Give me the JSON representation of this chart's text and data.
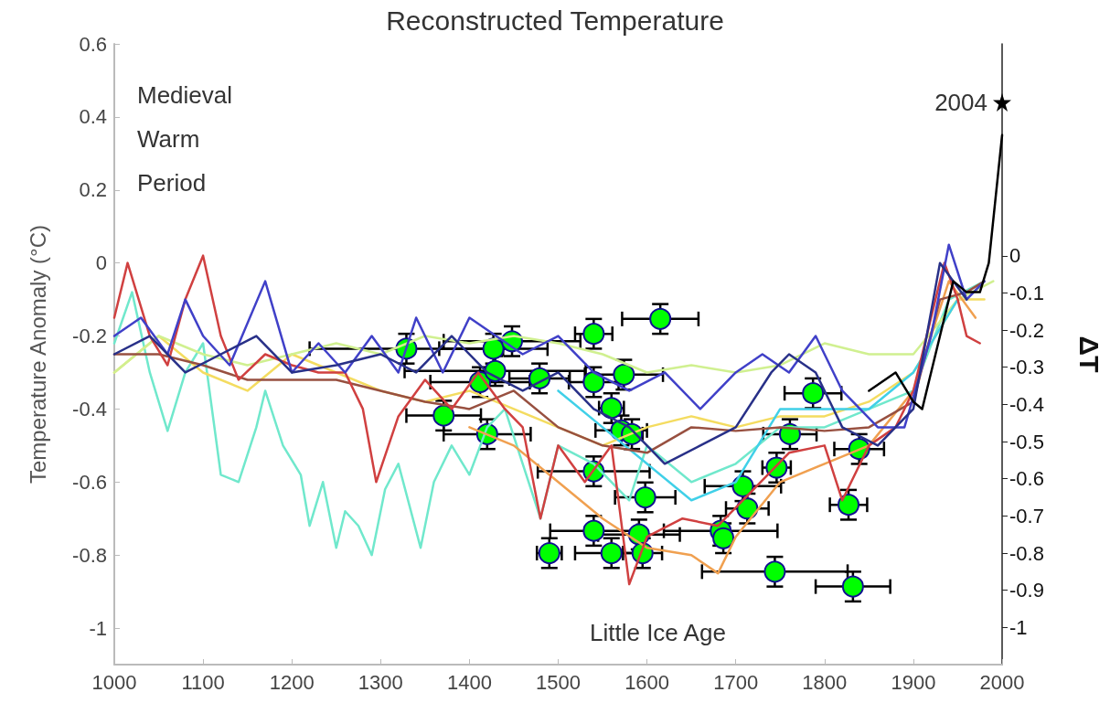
{
  "chart_data": {
    "type": "line",
    "title": "Reconstructed Temperature",
    "ylabel": "Temperature Anomaly (°C)",
    "y2label": "ΔT",
    "annotations": [
      "Medieval\nWarm\nPeriod",
      "Little Ice Age",
      {
        "text": "2004",
        "x": 2000,
        "y": 0.44
      }
    ],
    "xlim": [
      1000,
      2000
    ],
    "xticks": [
      1000,
      1100,
      1200,
      1300,
      1400,
      1500,
      1600,
      1700,
      1800,
      1900,
      2000
    ],
    "ylim": [
      -1.1,
      0.6
    ],
    "yticks": [
      -1,
      -0.8,
      -0.6,
      -0.4,
      -0.2,
      0,
      0.2,
      0.4,
      0.6
    ],
    "y2lim": [
      -1.1,
      0.57
    ],
    "y2ticks": [
      -1,
      -0.9,
      -0.8,
      -0.7,
      -0.6,
      -0.5,
      -0.4,
      -0.3,
      -0.2,
      -0.1,
      0
    ],
    "grid": false,
    "marker": "none",
    "line_style": "solid",
    "series": [
      {
        "color": "#70e8cc",
        "x": [
          1000,
          1020,
          1040,
          1060,
          1080,
          1100,
          1120,
          1140,
          1160,
          1170,
          1190,
          1210,
          1220,
          1235,
          1250,
          1260,
          1275,
          1290,
          1305,
          1320,
          1345,
          1360,
          1380,
          1400,
          1420,
          1440,
          1460,
          1480,
          1500,
          1540,
          1580,
          1600,
          1650,
          1700,
          1750,
          1800,
          1850,
          1900,
          1940,
          1980
        ],
        "values": [
          -0.22,
          -0.08,
          -0.3,
          -0.46,
          -0.3,
          -0.22,
          -0.58,
          -0.6,
          -0.45,
          -0.35,
          -0.5,
          -0.58,
          -0.72,
          -0.6,
          -0.78,
          -0.68,
          -0.72,
          -0.8,
          -0.62,
          -0.55,
          -0.78,
          -0.6,
          -0.5,
          -0.58,
          -0.45,
          -0.4,
          -0.55,
          -0.7,
          -0.5,
          -0.55,
          -0.65,
          -0.5,
          -0.6,
          -0.55,
          -0.45,
          -0.45,
          -0.4,
          -0.35,
          -0.1,
          -0.05
        ]
      },
      {
        "color": "#f4dc60",
        "x": [
          1000,
          1050,
          1100,
          1150,
          1200,
          1250,
          1300,
          1350,
          1400,
          1450,
          1500,
          1550,
          1600,
          1650,
          1700,
          1750,
          1800,
          1850,
          1900,
          1950,
          1980
        ],
        "values": [
          -0.3,
          -0.2,
          -0.3,
          -0.35,
          -0.25,
          -0.3,
          -0.35,
          -0.38,
          -0.35,
          -0.4,
          -0.45,
          -0.5,
          -0.45,
          -0.42,
          -0.45,
          -0.42,
          -0.42,
          -0.38,
          -0.3,
          -0.1,
          -0.1
        ]
      },
      {
        "color": "#d0f090",
        "x": [
          1000,
          1050,
          1100,
          1150,
          1200,
          1250,
          1300,
          1350,
          1400,
          1450,
          1500,
          1550,
          1600,
          1650,
          1700,
          1750,
          1800,
          1850,
          1900,
          1950,
          1990
        ],
        "values": [
          -0.3,
          -0.2,
          -0.25,
          -0.28,
          -0.25,
          -0.22,
          -0.25,
          -0.2,
          -0.22,
          -0.2,
          -0.22,
          -0.25,
          -0.3,
          -0.28,
          -0.3,
          -0.28,
          -0.22,
          -0.25,
          -0.25,
          -0.1,
          -0.05
        ]
      },
      {
        "color": "#f0a050",
        "x": [
          1400,
          1450,
          1500,
          1550,
          1600,
          1650,
          1680,
          1700,
          1750,
          1800,
          1850,
          1900,
          1940,
          1970
        ],
        "values": [
          -0.45,
          -0.5,
          -0.6,
          -0.7,
          -0.78,
          -0.8,
          -0.85,
          -0.75,
          -0.6,
          -0.55,
          -0.5,
          -0.35,
          -0.05,
          -0.15
        ]
      },
      {
        "color": "#40d0e8",
        "x": [
          1500,
          1550,
          1600,
          1650,
          1700,
          1750,
          1800,
          1850,
          1900,
          1950
        ],
        "values": [
          -0.35,
          -0.45,
          -0.55,
          -0.65,
          -0.6,
          -0.4,
          -0.4,
          -0.4,
          -0.3,
          -0.1
        ]
      },
      {
        "color": "#985040",
        "x": [
          1000,
          1050,
          1100,
          1150,
          1200,
          1250,
          1300,
          1350,
          1400,
          1450,
          1500,
          1550,
          1600,
          1650,
          1700,
          1750,
          1800,
          1850,
          1900,
          1930,
          1960,
          1980
        ],
        "values": [
          -0.25,
          -0.25,
          -0.28,
          -0.32,
          -0.32,
          -0.32,
          -0.35,
          -0.38,
          -0.4,
          -0.35,
          -0.45,
          -0.5,
          -0.52,
          -0.45,
          -0.46,
          -0.45,
          -0.46,
          -0.45,
          -0.38,
          -0.1,
          -0.08,
          -0.05
        ]
      },
      {
        "color": "#d04040",
        "x": [
          1000,
          1015,
          1040,
          1060,
          1080,
          1100,
          1120,
          1140,
          1170,
          1200,
          1230,
          1260,
          1280,
          1295,
          1320,
          1350,
          1380,
          1410,
          1440,
          1460,
          1480,
          1500,
          1530,
          1560,
          1580,
          1600,
          1640,
          1680,
          1720,
          1760,
          1800,
          1820,
          1850,
          1880,
          1900,
          1920,
          1935,
          1950,
          1960,
          1975
        ],
        "values": [
          -0.15,
          0.0,
          -0.2,
          -0.28,
          -0.1,
          0.02,
          -0.2,
          -0.32,
          -0.25,
          -0.28,
          -0.3,
          -0.3,
          -0.4,
          -0.6,
          -0.42,
          -0.32,
          -0.4,
          -0.3,
          -0.4,
          -0.45,
          -0.7,
          -0.5,
          -0.6,
          -0.5,
          -0.88,
          -0.75,
          -0.7,
          -0.72,
          -0.62,
          -0.52,
          -0.5,
          -0.65,
          -0.5,
          -0.45,
          -0.35,
          -0.15,
          0.0,
          -0.1,
          -0.2,
          -0.22
        ]
      },
      {
        "color": "#4040c8",
        "x": [
          1000,
          1030,
          1060,
          1080,
          1100,
          1130,
          1170,
          1200,
          1230,
          1260,
          1290,
          1320,
          1340,
          1370,
          1400,
          1430,
          1460,
          1500,
          1540,
          1580,
          1620,
          1660,
          1700,
          1730,
          1760,
          1790,
          1820,
          1860,
          1890,
          1920,
          1940,
          1960,
          1980
        ],
        "values": [
          -0.2,
          -0.15,
          -0.25,
          -0.1,
          -0.2,
          -0.28,
          -0.05,
          -0.3,
          -0.22,
          -0.3,
          -0.2,
          -0.3,
          -0.15,
          -0.3,
          -0.15,
          -0.2,
          -0.25,
          -0.2,
          -0.3,
          -0.35,
          -0.3,
          -0.4,
          -0.3,
          -0.25,
          -0.3,
          -0.2,
          -0.35,
          -0.45,
          -0.45,
          -0.2,
          0.05,
          -0.1,
          -0.05
        ]
      },
      {
        "color": "#283088",
        "x": [
          1000,
          1040,
          1080,
          1120,
          1160,
          1200,
          1250,
          1300,
          1340,
          1380,
          1420,
          1460,
          1500,
          1540,
          1580,
          1620,
          1660,
          1700,
          1740,
          1760,
          1790,
          1820,
          1860,
          1900,
          1930,
          1960
        ],
        "values": [
          -0.25,
          -0.2,
          -0.3,
          -0.25,
          -0.2,
          -0.3,
          -0.28,
          -0.25,
          -0.3,
          -0.2,
          -0.3,
          -0.35,
          -0.3,
          -0.4,
          -0.45,
          -0.55,
          -0.5,
          -0.45,
          -0.3,
          -0.25,
          -0.3,
          -0.45,
          -0.5,
          -0.4,
          0.0,
          -0.1
        ]
      },
      {
        "color": "#000000",
        "x": [
          1850,
          1880,
          1900,
          1910,
          1930,
          1945,
          1960,
          1975,
          1985,
          2000
        ],
        "values": [
          -0.35,
          -0.3,
          -0.38,
          -0.4,
          -0.2,
          -0.05,
          -0.08,
          -0.08,
          0.0,
          0.35
        ]
      },
      {
        "type": "scatter",
        "marker": "star",
        "color": "#000000",
        "x": [
          2000
        ],
        "values": [
          0.44
        ]
      },
      {
        "type": "scatter",
        "marker": "circle",
        "axis": "y2",
        "color": "#00ff00",
        "x": [
          1329,
          1427,
          1448,
          1540,
          1615,
          1412,
          1429,
          1479,
          1540,
          1574,
          1371,
          1420,
          1560,
          1571,
          1583,
          1540,
          1598,
          1540,
          1591,
          1490,
          1560,
          1595,
          1683,
          1686,
          1708,
          1713,
          1746,
          1761,
          1787,
          1839,
          1827,
          1744,
          1832
        ],
        "values": [
          -0.25,
          -0.25,
          -0.23,
          -0.21,
          -0.17,
          -0.34,
          -0.31,
          -0.33,
          -0.34,
          -0.32,
          -0.43,
          -0.48,
          -0.41,
          -0.47,
          -0.48,
          -0.58,
          -0.65,
          -0.74,
          -0.75,
          -0.8,
          -0.8,
          -0.8,
          -0.74,
          -0.76,
          -0.62,
          -0.68,
          -0.57,
          -0.48,
          -0.37,
          -0.52,
          -0.67,
          -0.85,
          -0.89
        ],
        "xerrors": [
          109,
          61,
          77,
          21,
          43,
          56,
          102,
          34,
          28,
          44,
          42,
          49,
          14,
          29,
          12,
          63,
          34,
          49,
          46,
          14,
          41,
          22,
          64,
          null,
          43,
          24,
          16,
          30,
          32,
          28,
          21,
          82,
          42
        ],
        "errors": [
          0.04,
          0.04,
          0.04,
          0.04,
          0.04,
          0.04,
          0.04,
          0.04,
          0.04,
          0.04,
          0.04,
          0.04,
          0.04,
          0.04,
          0.04,
          0.04,
          0.04,
          0.04,
          0.04,
          0.04,
          0.04,
          0.04,
          0.04,
          0.04,
          0.04,
          0.04,
          0.04,
          0.04,
          0.04,
          0.04,
          0.04,
          0.04,
          0.04
        ]
      }
    ]
  }
}
